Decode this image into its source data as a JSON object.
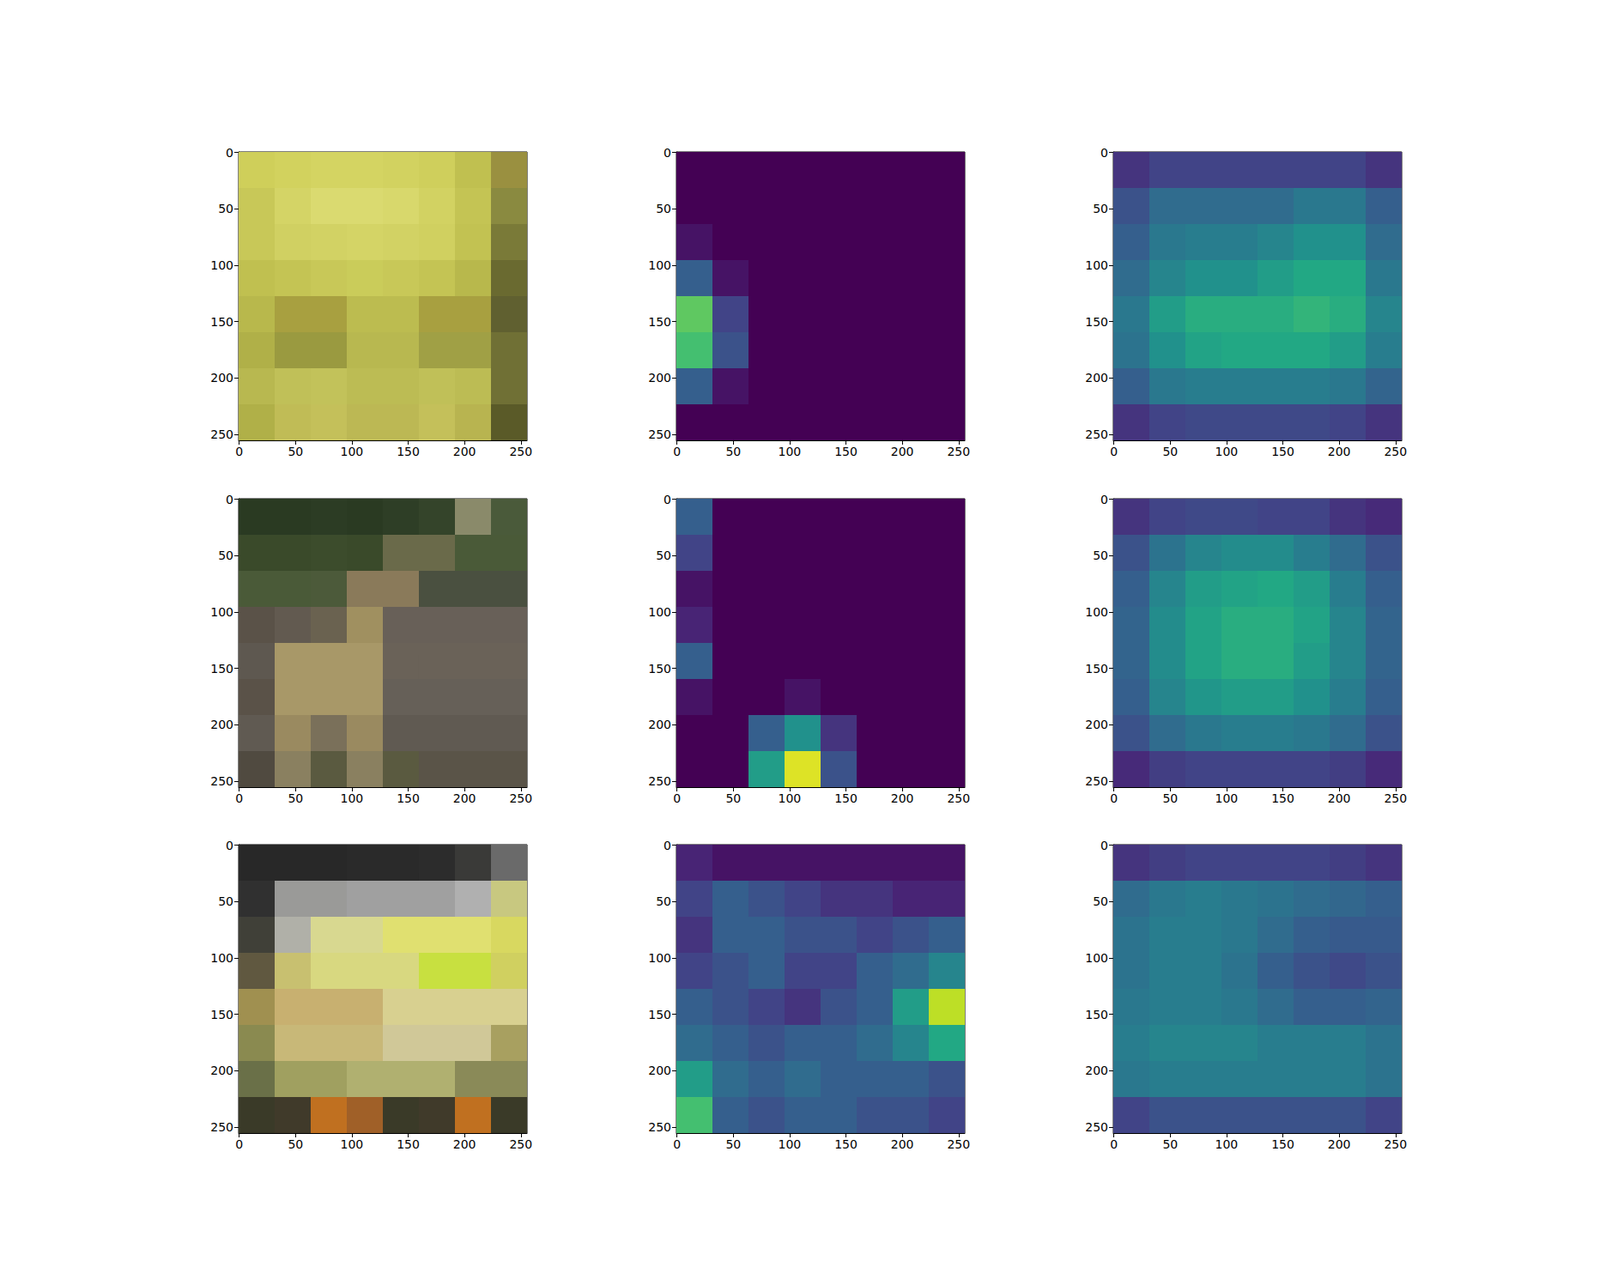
{
  "chart_data": [
    {
      "type": "image",
      "xlim": [
        -0.5,
        255.5
      ],
      "ylim": [
        255.5,
        -0.5
      ],
      "xticks": [
        0,
        50,
        100,
        150,
        200,
        250
      ],
      "yticks": [
        0,
        50,
        100,
        150,
        200,
        250
      ],
      "pixels": [
        [
          "#cfcf5a",
          "#d2d25e",
          "#d4d462",
          "#d4d462",
          "#d2d260",
          "#cfcf5c",
          "#c0c050",
          "#9a9040"
        ],
        [
          "#c8c858",
          "#d4d466",
          "#dada70",
          "#dada70",
          "#d8d86c",
          "#d2d262",
          "#c4c454",
          "#8a8a40"
        ],
        [
          "#c8c858",
          "#d0d062",
          "#d2d264",
          "#d4d466",
          "#d2d264",
          "#d0d060",
          "#c2c252",
          "#7a7a38"
        ],
        [
          "#c0c050",
          "#c4c454",
          "#c8c858",
          "#cacc5a",
          "#c8c858",
          "#c4c454",
          "#b8b84c",
          "#6a6a30"
        ],
        [
          "#b8b84c",
          "#a8a040",
          "#a8a040",
          "#bcbc50",
          "#bcbc50",
          "#a8a040",
          "#a8a040",
          "#606030"
        ],
        [
          "#b0b048",
          "#9a9a40",
          "#9a9a40",
          "#b8b850",
          "#b8b850",
          "#a0a045",
          "#a0a045",
          "#707035"
        ],
        [
          "#b8b850",
          "#c0c058",
          "#c2c25a",
          "#bcbc54",
          "#bcbc54",
          "#c0c058",
          "#bcbc54",
          "#707035"
        ],
        [
          "#b0b048",
          "#c0bc56",
          "#c4c05a",
          "#bcb854",
          "#bcb854",
          "#c4c05a",
          "#b8b450",
          "#5a5a28"
        ]
      ]
    },
    {
      "type": "heatmap",
      "xlim": [
        -0.5,
        255.5
      ],
      "ylim": [
        255.5,
        -0.5
      ],
      "xticks": [
        0,
        50,
        100,
        150,
        200,
        250
      ],
      "yticks": [
        0,
        50,
        100,
        150,
        200,
        250
      ],
      "clim": [
        0,
        1
      ],
      "cells": [
        [
          0,
          0,
          0,
          0,
          0,
          0,
          0,
          0
        ],
        [
          0,
          0,
          0,
          0,
          0,
          0,
          0,
          0
        ],
        [
          0.05,
          0,
          0,
          0,
          0,
          0,
          0,
          0
        ],
        [
          0.3,
          0.05,
          0,
          0,
          0,
          0,
          0,
          0
        ],
        [
          0.75,
          0.2,
          0,
          0,
          0,
          0,
          0,
          0
        ],
        [
          0.7,
          0.25,
          0,
          0,
          0,
          0,
          0,
          0
        ],
        [
          0.3,
          0.05,
          0,
          0,
          0,
          0,
          0,
          0
        ],
        [
          0,
          0,
          0,
          0,
          0,
          0,
          0,
          0
        ]
      ]
    },
    {
      "type": "heatmap",
      "xlim": [
        -0.5,
        255.5
      ],
      "ylim": [
        255.5,
        -0.5
      ],
      "xticks": [
        0,
        50,
        100,
        150,
        200,
        250
      ],
      "yticks": [
        0,
        50,
        100,
        150,
        200,
        250
      ],
      "clim": [
        0,
        1
      ],
      "cells": [
        [
          0.15,
          0.2,
          0.2,
          0.2,
          0.2,
          0.2,
          0.2,
          0.15
        ],
        [
          0.25,
          0.35,
          0.35,
          0.35,
          0.35,
          0.4,
          0.4,
          0.3
        ],
        [
          0.3,
          0.4,
          0.42,
          0.42,
          0.45,
          0.5,
          0.5,
          0.35
        ],
        [
          0.35,
          0.45,
          0.5,
          0.5,
          0.55,
          0.6,
          0.6,
          0.4
        ],
        [
          0.4,
          0.55,
          0.62,
          0.62,
          0.62,
          0.65,
          0.62,
          0.45
        ],
        [
          0.38,
          0.5,
          0.58,
          0.6,
          0.6,
          0.6,
          0.55,
          0.42
        ],
        [
          0.3,
          0.4,
          0.42,
          0.42,
          0.42,
          0.42,
          0.4,
          0.32
        ],
        [
          0.15,
          0.2,
          0.22,
          0.22,
          0.22,
          0.22,
          0.2,
          0.15
        ]
      ]
    },
    {
      "type": "image",
      "xlim": [
        -0.5,
        255.5
      ],
      "ylim": [
        255.5,
        -0.5
      ],
      "xticks": [
        0,
        50,
        100,
        150,
        200,
        250
      ],
      "yticks": [
        0,
        50,
        100,
        150,
        200,
        250
      ],
      "pixels": [
        [
          "#2a3a22",
          "#2a3a22",
          "#2c3c24",
          "#2a3a22",
          "#2e3e26",
          "#34442a",
          "#8a8a6a",
          "#4a5a3a"
        ],
        [
          "#3a4a2a",
          "#3a4a2a",
          "#3c4c2c",
          "#3a4a2a",
          "#6a6a4a",
          "#6a6a4a",
          "#4a5a38",
          "#4a5a38"
        ],
        [
          "#4a5a38",
          "#4a5a38",
          "#4c5a3a",
          "#8a7a5a",
          "#8a7a5a",
          "#4a5040",
          "#4a5040",
          "#4a5040"
        ],
        [
          "#5a5248",
          "#625a50",
          "#6a6250",
          "#a09060",
          "#686058",
          "#686058",
          "#686058",
          "#686058"
        ],
        [
          "#5e5850",
          "#a89868",
          "#a89868",
          "#a89868",
          "#6a6258",
          "#6a6258",
          "#6a6258",
          "#6a6258"
        ],
        [
          "#5a5248",
          "#a89868",
          "#a89868",
          "#a89868",
          "#666058",
          "#666058",
          "#666058",
          "#666058"
        ],
        [
          "#605a52",
          "#9a8a60",
          "#7a705a",
          "#9a8a60",
          "#605a52",
          "#605a52",
          "#605a52",
          "#605a52"
        ],
        [
          "#504a40",
          "#8a8060",
          "#5a5a40",
          "#8a8060",
          "#5a5a40",
          "#5a5448",
          "#5a5448",
          "#5a5448"
        ]
      ]
    },
    {
      "type": "heatmap",
      "xlim": [
        -0.5,
        255.5
      ],
      "ylim": [
        255.5,
        -0.5
      ],
      "xticks": [
        0,
        50,
        100,
        150,
        200,
        250
      ],
      "yticks": [
        0,
        50,
        100,
        150,
        200,
        250
      ],
      "clim": [
        0,
        1
      ],
      "cells": [
        [
          0.3,
          0,
          0,
          0,
          0,
          0,
          0,
          0
        ],
        [
          0.2,
          0,
          0,
          0,
          0,
          0,
          0,
          0
        ],
        [
          0.05,
          0,
          0,
          0,
          0,
          0,
          0,
          0
        ],
        [
          0.1,
          0,
          0,
          0,
          0,
          0,
          0,
          0
        ],
        [
          0.3,
          0,
          0,
          0,
          0,
          0,
          0,
          0
        ],
        [
          0.05,
          0,
          0,
          0.05,
          0,
          0,
          0,
          0
        ],
        [
          0,
          0,
          0.3,
          0.5,
          0.15,
          0,
          0,
          0
        ],
        [
          0,
          0,
          0.55,
          0.95,
          0.25,
          0,
          0,
          0
        ]
      ]
    },
    {
      "type": "heatmap",
      "xlim": [
        -0.5,
        255.5
      ],
      "ylim": [
        255.5,
        -0.5
      ],
      "xticks": [
        0,
        50,
        100,
        150,
        200,
        250
      ],
      "yticks": [
        0,
        50,
        100,
        150,
        200,
        250
      ],
      "clim": [
        0,
        1
      ],
      "cells": [
        [
          0.15,
          0.2,
          0.22,
          0.22,
          0.2,
          0.2,
          0.15,
          0.12
        ],
        [
          0.25,
          0.38,
          0.45,
          0.48,
          0.48,
          0.42,
          0.35,
          0.25
        ],
        [
          0.3,
          0.45,
          0.55,
          0.58,
          0.6,
          0.55,
          0.42,
          0.3
        ],
        [
          0.32,
          0.48,
          0.58,
          0.62,
          0.62,
          0.58,
          0.45,
          0.32
        ],
        [
          0.32,
          0.48,
          0.58,
          0.62,
          0.62,
          0.55,
          0.45,
          0.32
        ],
        [
          0.3,
          0.45,
          0.52,
          0.55,
          0.55,
          0.5,
          0.42,
          0.3
        ],
        [
          0.25,
          0.35,
          0.4,
          0.42,
          0.42,
          0.4,
          0.35,
          0.25
        ],
        [
          0.12,
          0.18,
          0.2,
          0.2,
          0.2,
          0.2,
          0.18,
          0.12
        ]
      ]
    },
    {
      "type": "image",
      "xlim": [
        -0.5,
        255.5
      ],
      "ylim": [
        255.5,
        -0.5
      ],
      "xticks": [
        0,
        50,
        100,
        150,
        200,
        250
      ],
      "yticks": [
        0,
        50,
        100,
        150,
        200,
        250
      ],
      "pixels": [
        [
          "#282828",
          "#282828",
          "#282828",
          "#2a2a2a",
          "#2a2a2a",
          "#2c2c2c",
          "#3a3a38",
          "#6a6a6a"
        ],
        [
          "#303030",
          "#9a9a98",
          "#9a9a98",
          "#a0a0a0",
          "#a0a0a0",
          "#a0a0a0",
          "#b0b0b0",
          "#c8c880"
        ],
        [
          "#404038",
          "#b0b0a8",
          "#d8d890",
          "#d8d890",
          "#e0e070",
          "#e0e070",
          "#e0e070",
          "#d8d860"
        ],
        [
          "#605840",
          "#c8c070",
          "#d8d880",
          "#d8d880",
          "#d8d880",
          "#c8e040",
          "#c8e040",
          "#d0d060"
        ],
        [
          "#a09050",
          "#c8b070",
          "#c8b070",
          "#c8b070",
          "#d8d090",
          "#d8d090",
          "#d8d090",
          "#d8d090"
        ],
        [
          "#8a8a50",
          "#c8b878",
          "#c8b878",
          "#c8b878",
          "#d0c898",
          "#d0c898",
          "#d0c898",
          "#a8a060"
        ],
        [
          "#6a7048",
          "#a0a060",
          "#a0a060",
          "#b0b070",
          "#b0b070",
          "#b0b070",
          "#8a8a58",
          "#8a8a58"
        ],
        [
          "#3a3a28",
          "#403a2a",
          "#c07020",
          "#a06028",
          "#3a3a28",
          "#403a2a",
          "#c07020",
          "#3a3a28"
        ]
      ]
    },
    {
      "type": "heatmap",
      "xlim": [
        -0.5,
        255.5
      ],
      "ylim": [
        255.5,
        -0.5
      ],
      "xticks": [
        0,
        50,
        100,
        150,
        200,
        250
      ],
      "yticks": [
        0,
        50,
        100,
        150,
        200,
        250
      ],
      "clim": [
        0,
        1
      ],
      "cells": [
        [
          0.1,
          0.05,
          0.05,
          0.05,
          0.05,
          0.05,
          0.05,
          0.05
        ],
        [
          0.2,
          0.3,
          0.25,
          0.2,
          0.15,
          0.15,
          0.1,
          0.1
        ],
        [
          0.15,
          0.3,
          0.3,
          0.25,
          0.25,
          0.2,
          0.25,
          0.3
        ],
        [
          0.2,
          0.25,
          0.3,
          0.2,
          0.2,
          0.3,
          0.35,
          0.45
        ],
        [
          0.3,
          0.25,
          0.2,
          0.15,
          0.25,
          0.3,
          0.55,
          0.9
        ],
        [
          0.35,
          0.3,
          0.25,
          0.3,
          0.3,
          0.35,
          0.45,
          0.6
        ],
        [
          0.55,
          0.35,
          0.3,
          0.35,
          0.3,
          0.3,
          0.3,
          0.25
        ],
        [
          0.7,
          0.3,
          0.25,
          0.3,
          0.3,
          0.25,
          0.25,
          0.2
        ]
      ]
    },
    {
      "type": "heatmap",
      "xlim": [
        -0.5,
        255.5
      ],
      "ylim": [
        255.5,
        -0.5
      ],
      "xticks": [
        0,
        50,
        100,
        150,
        200,
        250
      ],
      "yticks": [
        0,
        50,
        100,
        150,
        200,
        250
      ],
      "clim": [
        0,
        1
      ],
      "cells": [
        [
          0.15,
          0.18,
          0.2,
          0.2,
          0.2,
          0.2,
          0.18,
          0.15
        ],
        [
          0.35,
          0.4,
          0.42,
          0.4,
          0.38,
          0.35,
          0.33,
          0.3
        ],
        [
          0.38,
          0.42,
          0.42,
          0.4,
          0.35,
          0.3,
          0.28,
          0.28
        ],
        [
          0.38,
          0.42,
          0.42,
          0.38,
          0.3,
          0.25,
          0.22,
          0.25
        ],
        [
          0.4,
          0.42,
          0.42,
          0.4,
          0.35,
          0.3,
          0.3,
          0.32
        ],
        [
          0.42,
          0.45,
          0.45,
          0.45,
          0.42,
          0.42,
          0.42,
          0.38
        ],
        [
          0.4,
          0.42,
          0.42,
          0.42,
          0.42,
          0.42,
          0.42,
          0.38
        ],
        [
          0.2,
          0.25,
          0.25,
          0.25,
          0.25,
          0.25,
          0.25,
          0.2
        ]
      ]
    }
  ]
}
